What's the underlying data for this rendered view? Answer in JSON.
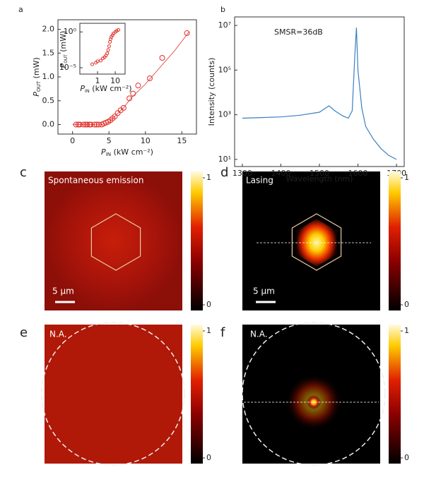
{
  "chart_data": [
    {
      "type": "scatter",
      "panel_label": "a",
      "color": "#e0302a",
      "xlabel": {
        "main": "P",
        "sub": "IN",
        "unit": " (kW cm⁻²)"
      },
      "ylabel": {
        "main": "P",
        "sub": "OUT",
        "unit": " (mW)"
      },
      "x": [
        0.5,
        0.8,
        1.0,
        1.5,
        1.8,
        2.0,
        2.3,
        2.5,
        3.0,
        3.3,
        3.6,
        4.0,
        4.3,
        4.6,
        4.9,
        5.2,
        5.5,
        5.8,
        6.2,
        6.6,
        7.0,
        7.8,
        8.3,
        9.0,
        10.6,
        12.3,
        15.7
      ],
      "values": [
        0,
        0,
        0,
        0,
        0,
        0,
        0,
        0,
        0,
        0,
        0,
        0,
        0.02,
        0.04,
        0.06,
        0.09,
        0.13,
        0.17,
        0.24,
        0.3,
        0.35,
        0.55,
        0.65,
        0.82,
        0.97,
        1.4,
        1.92
      ],
      "fit_x": [
        0,
        4,
        5,
        6,
        7,
        8,
        10,
        12,
        14,
        16
      ],
      "fit_values": [
        0,
        0,
        0.05,
        0.2,
        0.35,
        0.55,
        0.85,
        1.2,
        1.55,
        1.95
      ],
      "xlim": [
        -2,
        17
      ],
      "ylim": [
        -0.2,
        2.2
      ],
      "xticks": [
        0,
        5,
        10,
        15
      ],
      "yticks": [
        {
          "value": 0,
          "label": "0.0"
        },
        {
          "value": 0.5,
          "label": "0.5"
        },
        {
          "value": 1,
          "label": "1.0"
        },
        {
          "value": 1.5,
          "label": "1.5"
        },
        {
          "value": 2,
          "label": "2.0"
        }
      ],
      "inset": {
        "type": "scatter",
        "xlog": true,
        "ylog": true,
        "color": "#e0302a",
        "xlabel": {
          "main": "P",
          "sub": "IN",
          "unit": " (kW cm⁻²)"
        },
        "ylabel": {
          "main": "P",
          "sub": "OUT",
          "unit": " (mW)"
        },
        "x": [
          0.5,
          0.8,
          1,
          1.5,
          2,
          2.5,
          3,
          3.5,
          4,
          4.5,
          5,
          5.5,
          6,
          7,
          8,
          10,
          12,
          15
        ],
        "values": [
          3e-05,
          5e-05,
          8e-05,
          0.0001,
          0.0002,
          0.0003,
          0.0005,
          0.001,
          0.003,
          0.01,
          0.04,
          0.1,
          0.2,
          0.35,
          0.6,
          0.97,
          1.4,
          1.92
        ],
        "xlim": [
          0.1,
          36
        ],
        "ylim": [
          1.3e-06,
          16
        ],
        "xticks": [
          1,
          10
        ],
        "yticks": [
          {
            "value": 1,
            "label": "10⁰"
          },
          {
            "value": 1e-05,
            "label": "10⁻⁵"
          }
        ]
      }
    },
    {
      "type": "line",
      "panel_label": "b",
      "ylog": true,
      "xlabel": "Wavelength (nm)",
      "ylabel": "Intensity (counts)",
      "annotation": "SMSR=36dB",
      "x": [
        1300,
        1350,
        1400,
        1450,
        1500,
        1525,
        1540,
        1560,
        1575,
        1585,
        1592,
        1596,
        1600,
        1610,
        1620,
        1640,
        1660,
        1680,
        1700
      ],
      "series": [
        {
          "color": "#3a7fc1",
          "values": [
            700,
            750,
            800,
            950,
            1300,
            2500,
            1500,
            900,
            700,
            1500,
            500000,
            8000000,
            100000,
            2000,
            300,
            80,
            30,
            15,
            10
          ]
        }
      ],
      "xlim": [
        1280,
        1720
      ],
      "ylim": [
        4.8,
        24000000
      ],
      "xticks": [
        1300,
        1400,
        1500,
        1600,
        1700
      ],
      "yticks": [
        {
          "value": 10000000,
          "label": "10⁷"
        },
        {
          "value": 100000,
          "label": "10⁵"
        },
        {
          "value": 1000,
          "label": "10³"
        },
        {
          "value": 10,
          "label": "10¹"
        }
      ]
    }
  ],
  "panels": [
    {
      "label": "c",
      "caption": "Spontaneous emission",
      "scale_bar": "5 µm",
      "colorbar_ticks": [
        1,
        0
      ]
    },
    {
      "label": "d",
      "caption": "Lasing",
      "scale_bar": "5 µm",
      "colorbar_ticks": [
        1,
        0
      ]
    },
    {
      "label": "e",
      "caption": "N.A.",
      "colorbar_ticks": [
        1,
        0
      ]
    },
    {
      "label": "f",
      "caption": "N.A.",
      "colorbar_ticks": [
        1,
        0
      ]
    }
  ]
}
